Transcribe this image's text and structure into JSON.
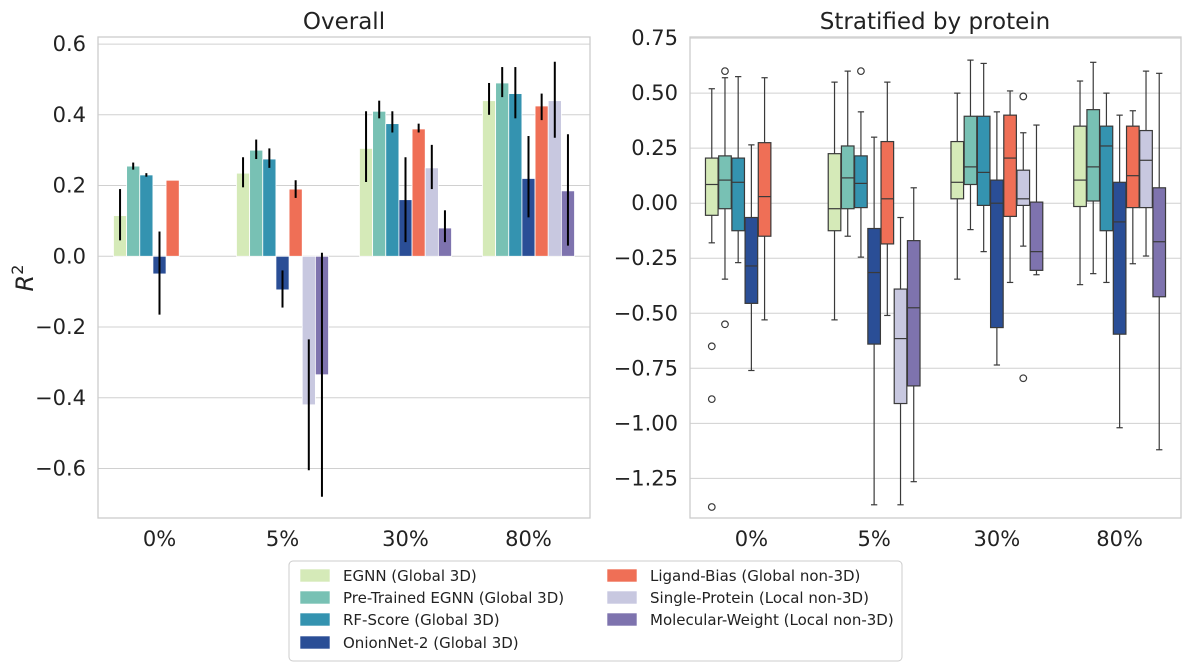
{
  "chart_data": [
    {
      "type": "bar",
      "title": "Overall",
      "xlabel": "",
      "ylabel": "R",
      "ylabel_sup": "2",
      "ylim": [
        -0.74,
        0.62
      ],
      "yticks": [
        -0.6,
        -0.4,
        -0.2,
        0.0,
        0.2,
        0.4,
        0.6
      ],
      "ytick_labels": [
        "−0.6",
        "−0.4",
        "−0.2",
        "0.0",
        "0.2",
        "0.4",
        "0.6"
      ],
      "grid": true,
      "categories": [
        "0%",
        "5%",
        "30%",
        "80%"
      ],
      "series": [
        {
          "name": "EGNN (Global 3D)",
          "values": [
            0.115,
            0.235,
            0.305,
            0.44
          ],
          "err_low": [
            0.045,
            0.195,
            0.21,
            0.4
          ],
          "err_high": [
            0.19,
            0.28,
            0.41,
            0.49
          ]
        },
        {
          "name": "Pre-Trained EGNN (Global 3D)",
          "values": [
            0.255,
            0.3,
            0.41,
            0.49
          ],
          "err_low": [
            0.245,
            0.275,
            0.39,
            0.45
          ],
          "err_high": [
            0.265,
            0.33,
            0.44,
            0.535
          ]
        },
        {
          "name": "RF-Score (Global 3D)",
          "values": [
            0.23,
            0.275,
            0.375,
            0.46
          ],
          "err_low": [
            0.225,
            0.25,
            0.35,
            0.39
          ],
          "err_high": [
            0.235,
            0.305,
            0.41,
            0.535
          ]
        },
        {
          "name": "OnionNet-2 (Global 3D)",
          "values": [
            -0.05,
            -0.095,
            0.16,
            0.22
          ],
          "err_low": [
            -0.165,
            -0.145,
            0.04,
            0.11
          ],
          "err_high": [
            0.07,
            -0.04,
            0.28,
            0.34
          ]
        },
        {
          "name": "Ligand-Bias (Global non-3D)",
          "values": [
            0.215,
            0.19,
            0.36,
            0.425
          ],
          "err_low": [
            0.215,
            0.165,
            0.35,
            0.385
          ],
          "err_high": [
            0.215,
            0.215,
            0.375,
            0.46
          ]
        },
        {
          "name": "Single-Protein (Local non-3D)",
          "values": [
            null,
            -0.42,
            0.25,
            0.44
          ],
          "err_low": [
            null,
            -0.605,
            0.19,
            0.335
          ],
          "err_high": [
            null,
            -0.235,
            0.315,
            0.55
          ]
        },
        {
          "name": "Molecular-Weight (Local non-3D)",
          "values": [
            null,
            -0.335,
            0.08,
            0.185
          ],
          "err_low": [
            null,
            -0.68,
            0.04,
            0.03
          ],
          "err_high": [
            null,
            0.01,
            0.13,
            0.345
          ]
        }
      ]
    },
    {
      "type": "box",
      "title": "Stratified by protein",
      "xlabel": "",
      "ylabel": "",
      "ylim": [
        -1.43,
        0.755
      ],
      "yticks": [
        0.75,
        0.5,
        0.25,
        0.0,
        -0.25,
        -0.5,
        -0.75,
        -1.0,
        -1.25
      ],
      "ytick_labels": [
        "0.75",
        "0.50",
        "0.25",
        "0.00",
        "−0.25",
        "−0.50",
        "−0.75",
        "−1.00",
        "−1.25"
      ],
      "grid": true,
      "categories": [
        "0%",
        "5%",
        "30%",
        "80%"
      ],
      "series": [
        {
          "name": "EGNN (Global 3D)",
          "boxes": [
            {
              "wlo": -0.18,
              "q1": -0.055,
              "med": 0.085,
              "q3": 0.205,
              "whi": 0.52,
              "fliers": [
                -0.65,
                -0.89,
                -1.38
              ]
            },
            {
              "wlo": -0.53,
              "q1": -0.125,
              "med": -0.025,
              "q3": 0.225,
              "whi": 0.55,
              "fliers": []
            },
            {
              "wlo": -0.345,
              "q1": 0.02,
              "med": 0.095,
              "q3": 0.28,
              "whi": 0.5,
              "fliers": []
            },
            {
              "wlo": -0.37,
              "q1": -0.015,
              "med": 0.105,
              "q3": 0.35,
              "whi": 0.555,
              "fliers": []
            }
          ]
        },
        {
          "name": "Pre-Trained EGNN (Global 3D)",
          "boxes": [
            {
              "wlo": -0.345,
              "q1": -0.025,
              "med": 0.105,
              "q3": 0.215,
              "whi": 0.57,
              "fliers": [
                0.6,
                -0.55
              ]
            },
            {
              "wlo": -0.15,
              "q1": -0.025,
              "med": 0.115,
              "q3": 0.26,
              "whi": 0.6,
              "fliers": []
            },
            {
              "wlo": -0.12,
              "q1": 0.085,
              "med": 0.165,
              "q3": 0.395,
              "whi": 0.65,
              "fliers": []
            },
            {
              "wlo": -0.32,
              "q1": 0.01,
              "med": 0.165,
              "q3": 0.425,
              "whi": 0.64,
              "fliers": []
            }
          ]
        },
        {
          "name": "RF-Score (Global 3D)",
          "boxes": [
            {
              "wlo": -0.27,
              "q1": -0.125,
              "med": 0.095,
              "q3": 0.205,
              "whi": 0.575,
              "fliers": []
            },
            {
              "wlo": -0.245,
              "q1": -0.02,
              "med": 0.09,
              "q3": 0.215,
              "whi": 0.415,
              "fliers": [
                0.6
              ]
            },
            {
              "wlo": -0.22,
              "q1": -0.01,
              "med": 0.14,
              "q3": 0.395,
              "whi": 0.635,
              "fliers": []
            },
            {
              "wlo": -0.36,
              "q1": -0.125,
              "med": 0.26,
              "q3": 0.35,
              "whi": 0.5,
              "fliers": []
            }
          ]
        },
        {
          "name": "OnionNet-2 (Global 3D)",
          "boxes": [
            {
              "wlo": -0.76,
              "q1": -0.455,
              "med": -0.285,
              "q3": -0.065,
              "whi": 0.265,
              "fliers": []
            },
            {
              "wlo": -1.37,
              "q1": -0.64,
              "med": -0.315,
              "q3": -0.115,
              "whi": 0.3,
              "fliers": []
            },
            {
              "wlo": -0.735,
              "q1": -0.565,
              "med": 0.0,
              "q3": 0.105,
              "whi": 0.415,
              "fliers": []
            },
            {
              "wlo": -1.02,
              "q1": -0.595,
              "med": -0.085,
              "q3": 0.095,
              "whi": 0.4,
              "fliers": []
            }
          ]
        },
        {
          "name": "Ligand-Bias (Global non-3D)",
          "boxes": [
            {
              "wlo": -0.53,
              "q1": -0.15,
              "med": 0.03,
              "q3": 0.275,
              "whi": 0.57,
              "fliers": []
            },
            {
              "wlo": -0.51,
              "q1": -0.185,
              "med": 0.02,
              "q3": 0.28,
              "whi": 0.55,
              "fliers": []
            },
            {
              "wlo": -0.36,
              "q1": -0.06,
              "med": 0.205,
              "q3": 0.4,
              "whi": 0.51,
              "fliers": []
            },
            {
              "wlo": -0.275,
              "q1": -0.02,
              "med": 0.125,
              "q3": 0.35,
              "whi": 0.42,
              "fliers": []
            }
          ]
        },
        {
          "name": "Single-Protein (Local non-3D)",
          "boxes": [
            null,
            {
              "wlo": -1.37,
              "q1": -0.91,
              "med": -0.615,
              "q3": -0.39,
              "whi": -0.065,
              "fliers": []
            },
            {
              "wlo": -0.195,
              "q1": -0.01,
              "med": 0.02,
              "q3": 0.15,
              "whi": 0.32,
              "fliers": [
                0.485,
                -0.795
              ]
            },
            {
              "wlo": -0.24,
              "q1": -0.02,
              "med": 0.195,
              "q3": 0.33,
              "whi": 0.6,
              "fliers": []
            }
          ]
        },
        {
          "name": "Molecular-Weight (Local non-3D)",
          "boxes": [
            null,
            {
              "wlo": -1.265,
              "q1": -0.83,
              "med": -0.475,
              "q3": -0.17,
              "whi": 0.07,
              "fliers": []
            },
            {
              "wlo": -0.325,
              "q1": -0.305,
              "med": -0.22,
              "q3": 0.005,
              "whi": 0.355,
              "fliers": []
            },
            {
              "wlo": -1.12,
              "q1": -0.425,
              "med": -0.175,
              "q3": 0.07,
              "whi": 0.59,
              "fliers": []
            }
          ]
        }
      ]
    }
  ],
  "colors": [
    "#d5eab8",
    "#78c1b4",
    "#3493b0",
    "#2a4e96",
    "#ef6f56",
    "#c8c8e0",
    "#7e73ae"
  ],
  "legend": {
    "placement": "bottom-center",
    "entries": [
      "EGNN (Global 3D)",
      "Pre-Trained EGNN (Global 3D)",
      "RF-Score (Global 3D)",
      "OnionNet-2 (Global 3D)",
      "Ligand-Bias (Global non-3D)",
      "Single-Protein (Local non-3D)",
      "Molecular-Weight (Local non-3D)"
    ]
  }
}
